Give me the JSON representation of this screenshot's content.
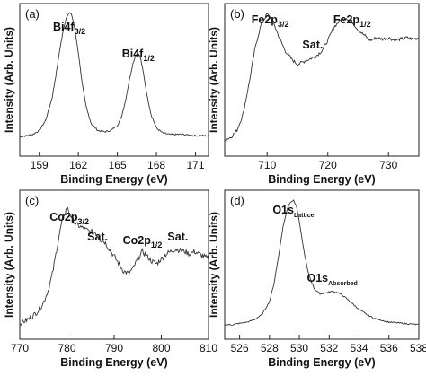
{
  "chart_data": [
    {
      "type": "line",
      "panel_label": "(a)",
      "xlabel": "Binding Energy (eV)",
      "ylabel": "Intensity (Arb. Units)",
      "xlim": [
        157.5,
        172
      ],
      "ticks": [
        159,
        162,
        165,
        168,
        171
      ],
      "grid": false,
      "annotations": [
        {
          "main": "Bi4f",
          "sub": "3/2",
          "x": 161.3
        },
        {
          "main": "Bi4f",
          "sub": "1/2",
          "x": 166.6
        }
      ],
      "series": [
        {
          "x": [
            157.5,
            158.0,
            158.5,
            159.0,
            159.5,
            160.0,
            160.3,
            160.6,
            160.9,
            161.1,
            161.3,
            161.5,
            161.7,
            162.0,
            162.3,
            162.6,
            163.0,
            163.5,
            164.0,
            164.5,
            165.0,
            165.3,
            165.6,
            165.9,
            166.2,
            166.4,
            166.6,
            166.8,
            167.0,
            167.3,
            167.6,
            168.0,
            168.5,
            169.0,
            170.0,
            171.0,
            172.0
          ],
          "y": [
            0.03,
            0.04,
            0.05,
            0.08,
            0.16,
            0.34,
            0.52,
            0.72,
            0.88,
            0.96,
            0.99,
            0.97,
            0.88,
            0.68,
            0.44,
            0.26,
            0.13,
            0.08,
            0.07,
            0.08,
            0.12,
            0.18,
            0.3,
            0.46,
            0.6,
            0.66,
            0.68,
            0.63,
            0.52,
            0.34,
            0.2,
            0.1,
            0.06,
            0.05,
            0.05,
            0.04,
            0.04
          ]
        }
      ]
    },
    {
      "type": "line",
      "panel_label": "(b)",
      "xlabel": "Binding Energy (eV)",
      "ylabel": "Intensity (Arb. Units)",
      "xlim": [
        703,
        735
      ],
      "ticks": [
        710,
        720,
        730
      ],
      "grid": false,
      "annotations": [
        {
          "main": "Fe2p",
          "sub": "3/2",
          "x": 710.5
        },
        {
          "main": "Sat.",
          "sub": "",
          "x": 717.5
        },
        {
          "main": "Fe2p",
          "sub": "1/2",
          "x": 724.0
        }
      ],
      "series": [
        {
          "x": [
            703,
            704,
            705,
            706,
            707,
            708,
            709,
            710,
            711,
            712,
            713,
            714,
            715,
            716,
            717,
            718,
            719,
            720,
            721,
            722,
            723,
            724,
            725,
            726,
            727,
            728,
            729,
            730,
            731,
            732,
            733,
            734,
            735
          ],
          "y": [
            0.03,
            0.05,
            0.1,
            0.22,
            0.45,
            0.72,
            0.9,
            0.98,
            0.92,
            0.8,
            0.7,
            0.64,
            0.6,
            0.62,
            0.64,
            0.66,
            0.7,
            0.78,
            0.88,
            0.93,
            0.95,
            0.92,
            0.86,
            0.82,
            0.78,
            0.8,
            0.79,
            0.8,
            0.78,
            0.79,
            0.8,
            0.79,
            0.8
          ]
        }
      ]
    },
    {
      "type": "line",
      "panel_label": "(c)",
      "xlabel": "Binding Energy (eV)",
      "ylabel": "Intensity (Arb. Units)",
      "xlim": [
        770,
        810
      ],
      "ticks": [
        770,
        780,
        790,
        800,
        810
      ],
      "grid": false,
      "annotations": [
        {
          "main": "Co2p",
          "sub": "3/2",
          "x": 780.5
        },
        {
          "main": "Sat.",
          "sub": "",
          "x": 786.5
        },
        {
          "main": "Co2p",
          "sub": "1/2",
          "x": 796.0
        },
        {
          "main": "Sat.",
          "sub": "",
          "x": 803.5
        }
      ],
      "series": [
        {
          "x": [
            770,
            771,
            772,
            773,
            774,
            775,
            776,
            777,
            778,
            779,
            780,
            781,
            782,
            783,
            784,
            785,
            786,
            787,
            788,
            789,
            790,
            791,
            792,
            793,
            794,
            795,
            796,
            797,
            798,
            799,
            800,
            801,
            802,
            803,
            804,
            805,
            806,
            807,
            808,
            809,
            810
          ],
          "y": [
            0.03,
            0.05,
            0.07,
            0.1,
            0.14,
            0.2,
            0.3,
            0.45,
            0.68,
            0.88,
            0.98,
            0.9,
            0.84,
            0.82,
            0.8,
            0.78,
            0.78,
            0.72,
            0.7,
            0.64,
            0.58,
            0.52,
            0.46,
            0.44,
            0.48,
            0.56,
            0.62,
            0.58,
            0.54,
            0.52,
            0.56,
            0.6,
            0.62,
            0.64,
            0.63,
            0.62,
            0.6,
            0.62,
            0.6,
            0.58,
            0.56
          ]
        }
      ]
    },
    {
      "type": "line",
      "panel_label": "(d)",
      "xlabel": "Binding Energy (eV)",
      "ylabel": "Intensity (Arb. Units)",
      "xlim": [
        525,
        538
      ],
      "ticks": [
        526,
        528,
        530,
        532,
        534,
        536,
        538
      ],
      "grid": false,
      "annotations": [
        {
          "main": "O1s",
          "sub": "Lattice",
          "x": 529.6
        },
        {
          "main": "O1s",
          "sub": "Absorbed",
          "x": 532.2
        }
      ],
      "series": [
        {
          "x": [
            525.0,
            525.5,
            526.0,
            526.5,
            527.0,
            527.5,
            528.0,
            528.3,
            528.6,
            528.9,
            529.2,
            529.4,
            529.6,
            529.8,
            530.0,
            530.3,
            530.6,
            531.0,
            531.4,
            531.8,
            532.2,
            532.6,
            533.0,
            533.5,
            534.0,
            534.5,
            535.0,
            536.0,
            537.0,
            538.0
          ],
          "y": [
            0.02,
            0.02,
            0.03,
            0.04,
            0.06,
            0.1,
            0.2,
            0.34,
            0.55,
            0.78,
            0.93,
            0.98,
            0.99,
            0.95,
            0.82,
            0.6,
            0.42,
            0.3,
            0.26,
            0.27,
            0.28,
            0.27,
            0.24,
            0.19,
            0.14,
            0.1,
            0.07,
            0.04,
            0.03,
            0.02
          ]
        }
      ]
    }
  ]
}
